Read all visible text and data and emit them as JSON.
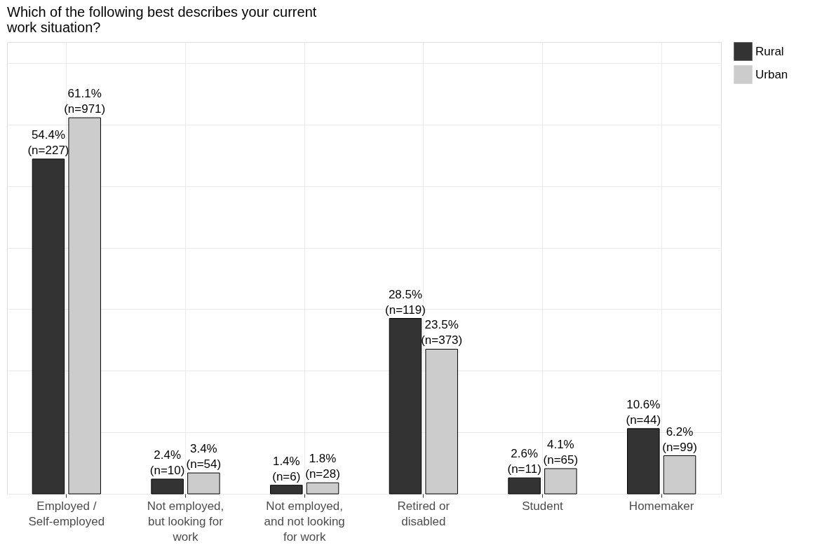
{
  "chart_data": {
    "type": "bar",
    "title": "Which of the following best describes your current\nwork situation?",
    "categories": [
      "Employed /\nSelf-employed",
      "Not employed,\nbut looking for\nwork",
      "Not employed,\nand not looking\nfor work",
      "Retired or\ndisabled",
      "Student",
      "Homemaker"
    ],
    "series": [
      {
        "name": "Rural",
        "color": "#333333",
        "values": [
          54.4,
          2.4,
          1.4,
          28.5,
          2.6,
          10.6
        ],
        "value_labels": [
          "54.4%\n(n=227)",
          "2.4%\n(n=10)",
          "1.4%\n(n=6)",
          "28.5%\n(n=119)",
          "2.6%\n(n=11)",
          "10.6%\n(n=44)"
        ]
      },
      {
        "name": "Urban",
        "color": "#cccccc",
        "values": [
          61.1,
          3.4,
          1.8,
          23.5,
          4.1,
          6.2
        ],
        "value_labels": [
          "61.1%\n(n=971)",
          "3.4%\n(n=54)",
          "1.8%\n(n=28)",
          "23.5%\n(n=373)",
          "4.1%\n(n=65)",
          "6.2%\n(n=99)"
        ]
      }
    ],
    "ylim": [
      0,
      73.4
    ],
    "yticks": [
      {
        "value": 0,
        "label": null
      },
      {
        "value": 10,
        "label": null
      },
      {
        "value": 20,
        "label": null
      },
      {
        "value": 30,
        "label": null
      },
      {
        "value": 40,
        "label": null
      },
      {
        "value": 50,
        "label": null
      },
      {
        "value": 60,
        "label": null
      },
      {
        "value": 70,
        "label": null
      }
    ],
    "tick_labels": "x",
    "grid": true,
    "legend": "right"
  }
}
